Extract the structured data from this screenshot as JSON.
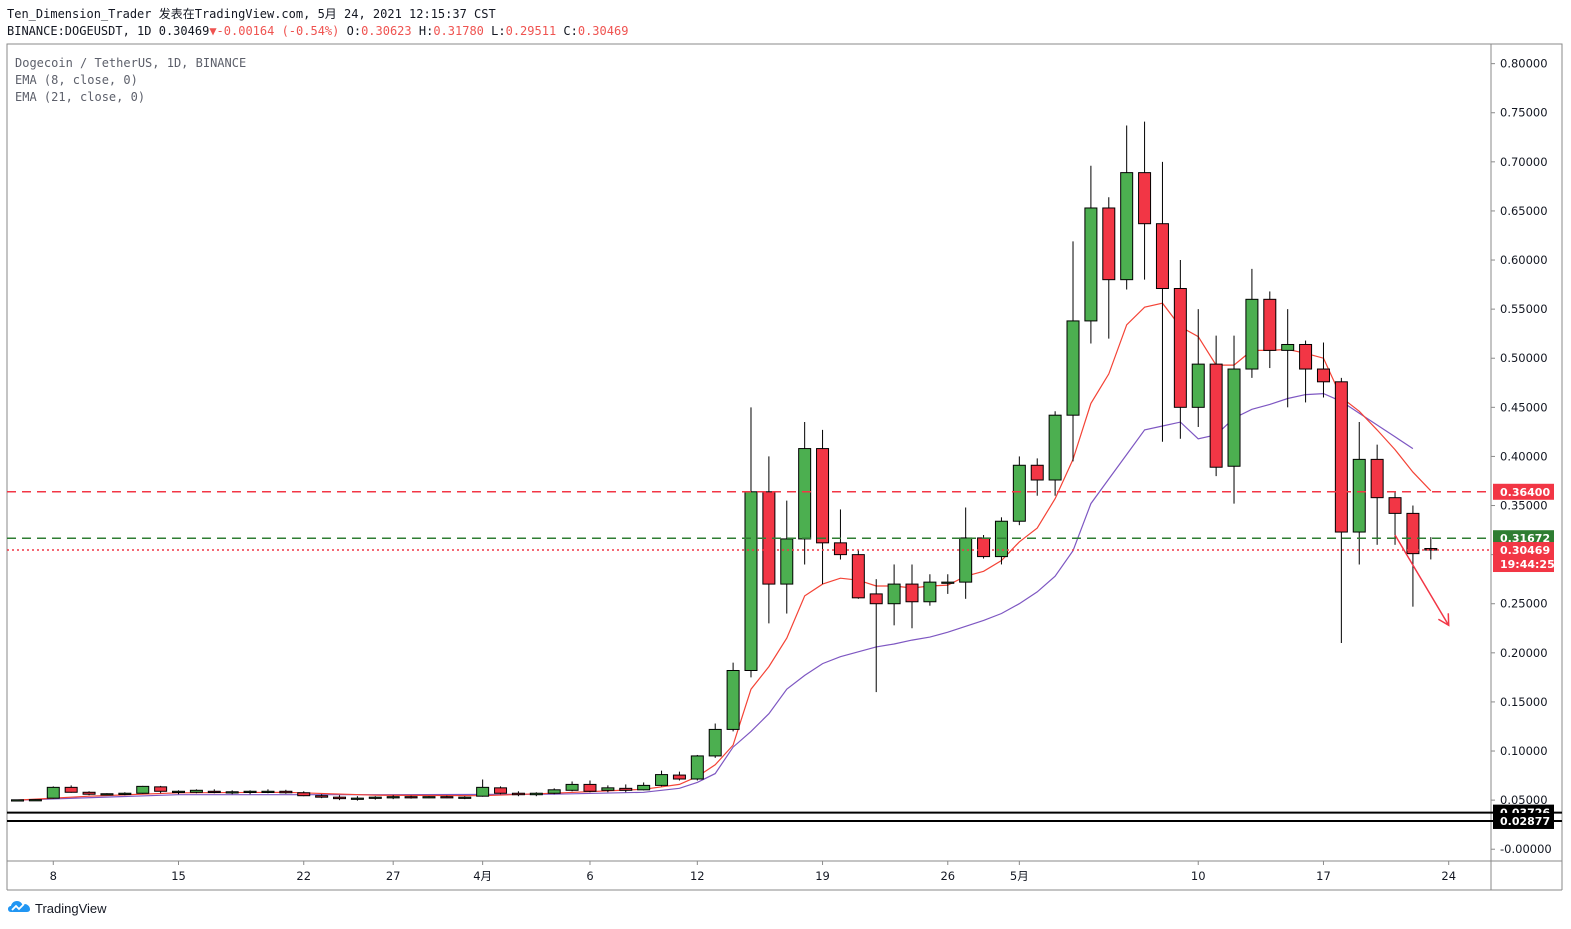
{
  "header": {
    "author": "Ten_Dimension_Trader",
    "published": "发表在TradingView.com",
    "datetime": "5月 24, 2021 12:15:37 CST",
    "symbol": "BINANCE:DOGEUSDT, 1D",
    "last": "0.30469",
    "change": "-0.00164 (-0.54%)",
    "o_label": "O:",
    "o": "0.30623",
    "h_label": "H:",
    "h": "0.31780",
    "l_label": "L:",
    "l": "0.29511",
    "c_label": "C:",
    "c": "0.30469"
  },
  "legend": {
    "title": "Dogecoin / TetherUS, 1D, BINANCE",
    "ema_fast": "EMA (8, close, 0)",
    "ema_slow": "EMA (21, close, 0)"
  },
  "brand": {
    "name": "TradingView"
  },
  "colors": {
    "up": "#4caf50",
    "down": "#f23645",
    "ema_fast": "#f44336",
    "ema_slow": "#7e57c2",
    "resistance": "#f23645",
    "support": "#2e7d32",
    "last_price": "#f23645",
    "base_lines": "#000000"
  },
  "chart_data": {
    "type": "candlestick",
    "title": "Dogecoin / TetherUS, 1D, BINANCE",
    "ylim": [
      -0.012,
      0.82
    ],
    "y_ticks": [
      "0.80000",
      "0.75000",
      "0.70000",
      "0.65000",
      "0.60000",
      "0.55000",
      "0.50000",
      "0.45000",
      "0.40000",
      "0.35000",
      "0.30000",
      "0.25000",
      "0.20000",
      "0.15000",
      "0.10000",
      "0.05000",
      "-0.00000"
    ],
    "x_ticks": [
      {
        "index": 2,
        "label": "8"
      },
      {
        "index": 9,
        "label": "15"
      },
      {
        "index": 16,
        "label": "22"
      },
      {
        "index": 21,
        "label": "27"
      },
      {
        "index": 26,
        "label": "4月"
      },
      {
        "index": 32,
        "label": "6"
      },
      {
        "index": 38,
        "label": "12"
      },
      {
        "index": 45,
        "label": "19"
      },
      {
        "index": 52,
        "label": "26"
      },
      {
        "index": 56,
        "label": "5月"
      },
      {
        "index": 66,
        "label": "10"
      },
      {
        "index": 73,
        "label": "17"
      },
      {
        "index": 80,
        "label": "24"
      }
    ],
    "candles": [
      [
        0.05,
        0.0506,
        0.0496,
        0.0503
      ],
      [
        0.0503,
        0.0508,
        0.0499,
        0.0505
      ],
      [
        0.052,
        0.064,
        0.0515,
        0.063
      ],
      [
        0.063,
        0.065,
        0.0575,
        0.058
      ],
      [
        0.058,
        0.059,
        0.055,
        0.056
      ],
      [
        0.0555,
        0.057,
        0.055,
        0.0565
      ],
      [
        0.056,
        0.058,
        0.055,
        0.057
      ],
      [
        0.057,
        0.0645,
        0.0565,
        0.064
      ],
      [
        0.0635,
        0.0645,
        0.057,
        0.059
      ],
      [
        0.058,
        0.06,
        0.056,
        0.059
      ],
      [
        0.058,
        0.061,
        0.057,
        0.06
      ],
      [
        0.059,
        0.061,
        0.057,
        0.0585
      ],
      [
        0.058,
        0.06,
        0.056,
        0.0585
      ],
      [
        0.058,
        0.06,
        0.056,
        0.059
      ],
      [
        0.0585,
        0.061,
        0.057,
        0.059
      ],
      [
        0.059,
        0.0605,
        0.0565,
        0.0575
      ],
      [
        0.0575,
        0.059,
        0.054,
        0.0545
      ],
      [
        0.0545,
        0.056,
        0.052,
        0.053
      ],
      [
        0.053,
        0.055,
        0.05,
        0.0515
      ],
      [
        0.0515,
        0.054,
        0.0495,
        0.052
      ],
      [
        0.052,
        0.054,
        0.0505,
        0.053
      ],
      [
        0.053,
        0.055,
        0.051,
        0.0535
      ],
      [
        0.0535,
        0.0545,
        0.0515,
        0.053
      ],
      [
        0.053,
        0.054,
        0.052,
        0.0535
      ],
      [
        0.0535,
        0.0545,
        0.052,
        0.053
      ],
      [
        0.053,
        0.054,
        0.051,
        0.053
      ],
      [
        0.054,
        0.071,
        0.0535,
        0.063
      ],
      [
        0.0625,
        0.064,
        0.056,
        0.057
      ],
      [
        0.057,
        0.059,
        0.054,
        0.0555
      ],
      [
        0.0555,
        0.058,
        0.054,
        0.057
      ],
      [
        0.057,
        0.062,
        0.056,
        0.0605
      ],
      [
        0.06,
        0.069,
        0.059,
        0.066
      ],
      [
        0.066,
        0.07,
        0.058,
        0.059
      ],
      [
        0.06,
        0.065,
        0.058,
        0.0625
      ],
      [
        0.062,
        0.066,
        0.058,
        0.06
      ],
      [
        0.0605,
        0.068,
        0.06,
        0.065
      ],
      [
        0.065,
        0.08,
        0.064,
        0.076
      ],
      [
        0.0755,
        0.079,
        0.07,
        0.0715
      ],
      [
        0.0715,
        0.096,
        0.07,
        0.095
      ],
      [
        0.095,
        0.128,
        0.093,
        0.122
      ],
      [
        0.122,
        0.19,
        0.12,
        0.182
      ],
      [
        0.182,
        0.45,
        0.175,
        0.364
      ],
      [
        0.364,
        0.4,
        0.23,
        0.27
      ],
      [
        0.27,
        0.355,
        0.24,
        0.316
      ],
      [
        0.316,
        0.435,
        0.29,
        0.408
      ],
      [
        0.408,
        0.427,
        0.27,
        0.312
      ],
      [
        0.312,
        0.346,
        0.295,
        0.3
      ],
      [
        0.3,
        0.305,
        0.255,
        0.256
      ],
      [
        0.26,
        0.275,
        0.16,
        0.25
      ],
      [
        0.25,
        0.29,
        0.228,
        0.27
      ],
      [
        0.27,
        0.29,
        0.225,
        0.252
      ],
      [
        0.252,
        0.28,
        0.248,
        0.272
      ],
      [
        0.272,
        0.28,
        0.26,
        0.272
      ],
      [
        0.272,
        0.348,
        0.255,
        0.317
      ],
      [
        0.317,
        0.32,
        0.296,
        0.298
      ],
      [
        0.298,
        0.338,
        0.29,
        0.334
      ],
      [
        0.334,
        0.4,
        0.33,
        0.391
      ],
      [
        0.391,
        0.398,
        0.36,
        0.376
      ],
      [
        0.376,
        0.446,
        0.36,
        0.442
      ],
      [
        0.442,
        0.619,
        0.395,
        0.538
      ],
      [
        0.538,
        0.696,
        0.515,
        0.653
      ],
      [
        0.653,
        0.664,
        0.52,
        0.58
      ],
      [
        0.58,
        0.737,
        0.57,
        0.689
      ],
      [
        0.689,
        0.741,
        0.58,
        0.637
      ],
      [
        0.637,
        0.7,
        0.415,
        0.571
      ],
      [
        0.571,
        0.6,
        0.418,
        0.45
      ],
      [
        0.45,
        0.55,
        0.43,
        0.494
      ],
      [
        0.494,
        0.523,
        0.38,
        0.389
      ],
      [
        0.39,
        0.523,
        0.352,
        0.489
      ],
      [
        0.489,
        0.591,
        0.48,
        0.56
      ],
      [
        0.56,
        0.568,
        0.49,
        0.508
      ],
      [
        0.508,
        0.55,
        0.45,
        0.514
      ],
      [
        0.514,
        0.518,
        0.455,
        0.489
      ],
      [
        0.489,
        0.516,
        0.46,
        0.476
      ],
      [
        0.476,
        0.48,
        0.21,
        0.323
      ],
      [
        0.323,
        0.435,
        0.29,
        0.397
      ],
      [
        0.397,
        0.412,
        0.31,
        0.358
      ],
      [
        0.358,
        0.364,
        0.31,
        0.342
      ],
      [
        0.342,
        0.35,
        0.247,
        0.301
      ],
      [
        0.3062,
        0.3178,
        0.2951,
        0.3047
      ]
    ],
    "ema8": [
      [
        0,
        0.05
      ],
      [
        4,
        0.054
      ],
      [
        9,
        0.0575
      ],
      [
        15,
        0.058
      ],
      [
        20,
        0.055
      ],
      [
        26,
        0.0545
      ],
      [
        30,
        0.057
      ],
      [
        35,
        0.061
      ],
      [
        37,
        0.066
      ],
      [
        38,
        0.074
      ],
      [
        39,
        0.086
      ],
      [
        40,
        0.106
      ],
      [
        41,
        0.163
      ],
      [
        42,
        0.186
      ],
      [
        43,
        0.215
      ],
      [
        44,
        0.258
      ],
      [
        45,
        0.27
      ],
      [
        46,
        0.276
      ],
      [
        47,
        0.274
      ],
      [
        48,
        0.268
      ],
      [
        49,
        0.268
      ],
      [
        50,
        0.266
      ],
      [
        51,
        0.268
      ],
      [
        52,
        0.269
      ],
      [
        53,
        0.278
      ],
      [
        54,
        0.283
      ],
      [
        55,
        0.294
      ],
      [
        56,
        0.313
      ],
      [
        57,
        0.327
      ],
      [
        58,
        0.357
      ],
      [
        59,
        0.397
      ],
      [
        60,
        0.454
      ],
      [
        61,
        0.484
      ],
      [
        62,
        0.534
      ],
      [
        63,
        0.552
      ],
      [
        64,
        0.556
      ],
      [
        65,
        0.532
      ],
      [
        66,
        0.522
      ],
      [
        67,
        0.493
      ],
      [
        68,
        0.493
      ],
      [
        69,
        0.508
      ],
      [
        70,
        0.508
      ],
      [
        71,
        0.509
      ],
      [
        72,
        0.505
      ],
      [
        73,
        0.5
      ],
      [
        74,
        0.46
      ],
      [
        75,
        0.446
      ],
      [
        76,
        0.427
      ],
      [
        77,
        0.407
      ],
      [
        78,
        0.384
      ],
      [
        79,
        0.365
      ]
    ],
    "ema21": [
      [
        0,
        0.05
      ],
      [
        9,
        0.0555
      ],
      [
        20,
        0.0555
      ],
      [
        30,
        0.056
      ],
      [
        35,
        0.058
      ],
      [
        37,
        0.062
      ],
      [
        38,
        0.068
      ],
      [
        39,
        0.077
      ],
      [
        40,
        0.104
      ],
      [
        41,
        0.12
      ],
      [
        42,
        0.138
      ],
      [
        43,
        0.163
      ],
      [
        44,
        0.177
      ],
      [
        45,
        0.189
      ],
      [
        46,
        0.196
      ],
      [
        47,
        0.201
      ],
      [
        48,
        0.206
      ],
      [
        49,
        0.209
      ],
      [
        50,
        0.213
      ],
      [
        51,
        0.216
      ],
      [
        52,
        0.221
      ],
      [
        53,
        0.227
      ],
      [
        54,
        0.233
      ],
      [
        55,
        0.24
      ],
      [
        56,
        0.25
      ],
      [
        57,
        0.262
      ],
      [
        58,
        0.278
      ],
      [
        59,
        0.304
      ],
      [
        60,
        0.352
      ],
      [
        61,
        0.377
      ],
      [
        62,
        0.402
      ],
      [
        63,
        0.427
      ],
      [
        64,
        0.431
      ],
      [
        65,
        0.435
      ],
      [
        66,
        0.418
      ],
      [
        67,
        0.422
      ],
      [
        68,
        0.439
      ],
      [
        69,
        0.448
      ],
      [
        70,
        0.453
      ],
      [
        71,
        0.459
      ],
      [
        72,
        0.463
      ],
      [
        73,
        0.464
      ],
      [
        74,
        0.456
      ],
      [
        75,
        0.444
      ],
      [
        76,
        0.432
      ],
      [
        77,
        0.42
      ],
      [
        78,
        0.408
      ]
    ],
    "lines": [
      {
        "name": "resistance",
        "value": 0.364,
        "label": "0.36400",
        "style": "dashed",
        "color": "#f23645"
      },
      {
        "name": "support",
        "value": 0.31672,
        "label": "0.31672",
        "style": "dashed",
        "color": "#2e7d32"
      },
      {
        "name": "last-price",
        "value": 0.30469,
        "label": "0.30469",
        "style": "dotted",
        "color": "#f23645",
        "countdown": "19:44:25"
      },
      {
        "name": "base-high",
        "value": 0.03726,
        "label": "0.03726",
        "style": "solid",
        "color": "#000000"
      },
      {
        "name": "base-low",
        "value": 0.02877,
        "label": "0.02877",
        "style": "solid",
        "color": "#000000"
      }
    ],
    "arrow": {
      "from": [
        77,
        0.32
      ],
      "to": [
        80,
        0.228
      ],
      "color": "#f23645"
    }
  }
}
